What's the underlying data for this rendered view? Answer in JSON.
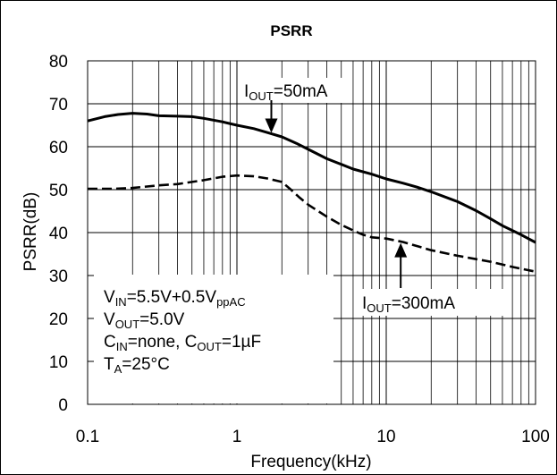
{
  "chart_data": {
    "type": "line",
    "title": "PSRR",
    "xlabel": "Frequency(kHz)",
    "ylabel": "PSRR(dB)",
    "x_scale": "log",
    "xlim": [
      0.1,
      100
    ],
    "ylim": [
      0,
      80
    ],
    "x_ticks": [
      {
        "value": 0.1,
        "label": "0.1"
      },
      {
        "value": 1,
        "label": "1"
      },
      {
        "value": 10,
        "label": "10"
      },
      {
        "value": 100,
        "label": "100"
      }
    ],
    "y_ticks": [
      0,
      10,
      20,
      30,
      40,
      50,
      60,
      70,
      80
    ],
    "grid": true,
    "series": [
      {
        "name": "IOUT=50mA",
        "line_style": "solid",
        "color": "#000000",
        "x": [
          0.1,
          0.13,
          0.16,
          0.2,
          0.25,
          0.3,
          0.4,
          0.5,
          0.6,
          0.8,
          1,
          1.3,
          1.6,
          2,
          2.5,
          3,
          4,
          5,
          6,
          8,
          10,
          13,
          16,
          20,
          30,
          40,
          50,
          60,
          80,
          100
        ],
        "y": [
          66,
          67,
          67.5,
          67.8,
          67.6,
          67.2,
          67.1,
          67,
          66.6,
          65.8,
          65,
          64.2,
          63.3,
          62.3,
          60.8,
          59.4,
          57.2,
          55.9,
          54.8,
          53.6,
          52.5,
          51.5,
          50.6,
          49.5,
          47.2,
          45.1,
          43.2,
          41.6,
          39.5,
          37.7
        ]
      },
      {
        "name": "IOUT=300mA",
        "line_style": "dashed",
        "color": "#000000",
        "x": [
          0.1,
          0.15,
          0.2,
          0.3,
          0.4,
          0.5,
          0.6,
          0.8,
          1,
          1.3,
          1.6,
          2,
          2.3,
          2.6,
          3,
          4,
          5,
          6,
          7,
          8,
          10,
          13,
          20,
          30,
          50,
          70,
          100
        ],
        "y": [
          50.2,
          50.2,
          50.4,
          51,
          51.3,
          51.8,
          52.2,
          53,
          53.3,
          53.1,
          52.6,
          51.8,
          50,
          48.3,
          46.5,
          43.7,
          41.8,
          40.5,
          39.5,
          38.9,
          38.6,
          37.8,
          35.9,
          34.6,
          33.2,
          32,
          30.9
        ]
      }
    ],
    "annotations": [
      {
        "name": "label-50ma",
        "main": "I",
        "sub": "OUT",
        "rest": "=50mA",
        "target_x": 1.7,
        "target_y": 62.8
      },
      {
        "name": "label-300ma",
        "main": "I",
        "sub": "OUT",
        "rest": "=300mA",
        "target_x": 12.5,
        "target_y": 38.4
      }
    ],
    "conditions": [
      {
        "main": "V",
        "sub": "IN",
        "rest": "=5.5V+0.5V",
        "sub2": "ppAC",
        "rest2": ""
      },
      {
        "main": "V",
        "sub": "OUT",
        "rest": "=5.0V",
        "sub2": "",
        "rest2": ""
      },
      {
        "main": "C",
        "sub": "IN",
        "rest": "=none, C",
        "sub2": "OUT",
        "rest2": "=1µF"
      },
      {
        "main": "T",
        "sub": "A",
        "rest": "=25°C",
        "sub2": "",
        "rest2": ""
      }
    ]
  }
}
